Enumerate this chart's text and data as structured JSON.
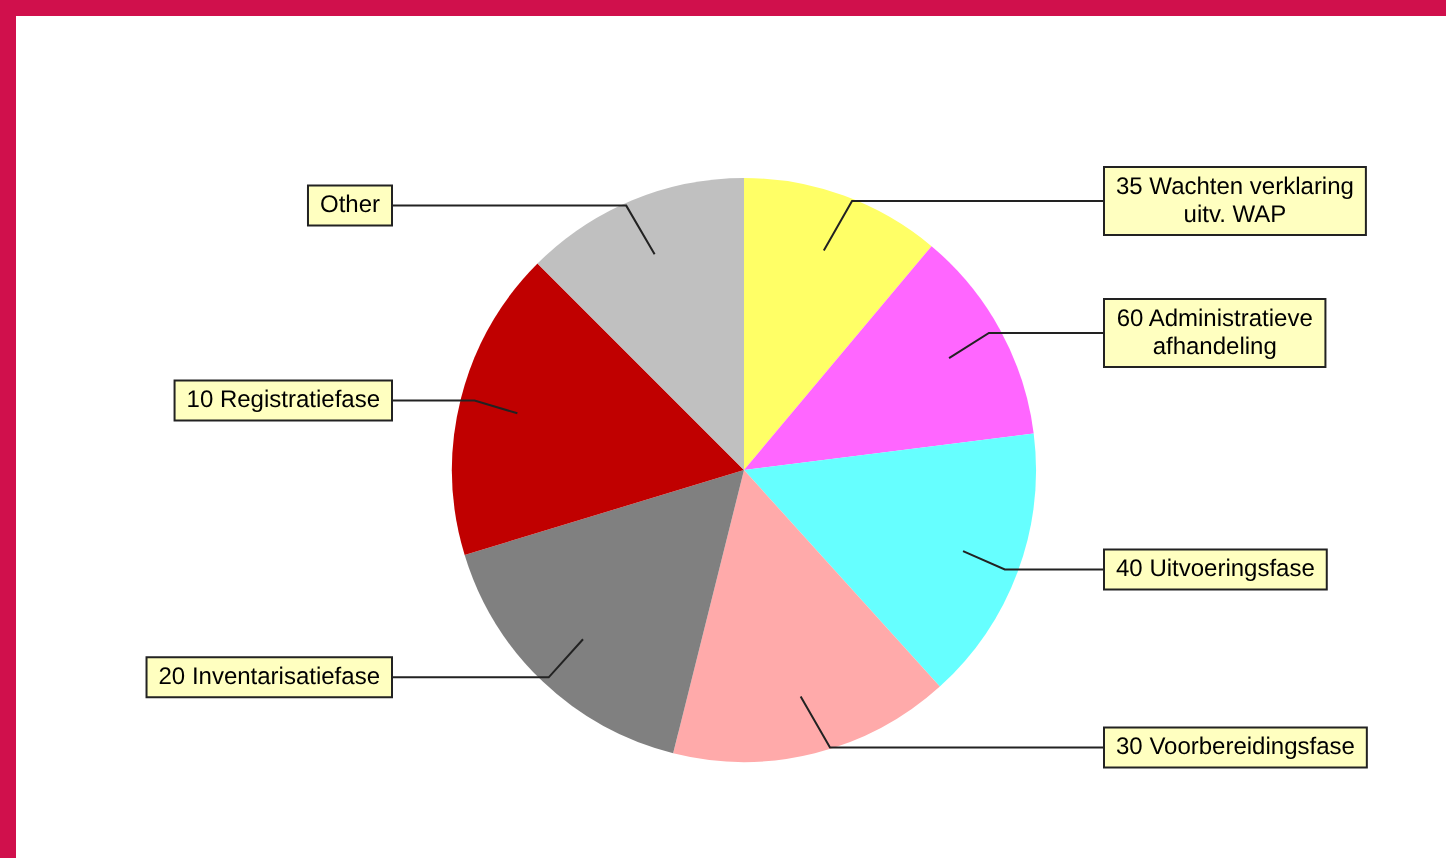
{
  "chart_data": {
    "type": "pie",
    "categories": [
      "35 Wachten verklaring uitv. WAP",
      "60 Administratieve afhandeling",
      "40 Uitvoeringsfase",
      "30 Voorbereidingsfase",
      "20 Inventarisatiefase",
      "10 Registratiefase",
      "Other"
    ],
    "values": [
      11.1,
      11.9,
      15.3,
      15.6,
      16.4,
      17.2,
      12.5
    ],
    "colors": [
      "#ffff66",
      "#ff66ff",
      "#66ffff",
      "#ffaaaa",
      "#808080",
      "#c00000",
      "#c0c0c0"
    ]
  }
}
